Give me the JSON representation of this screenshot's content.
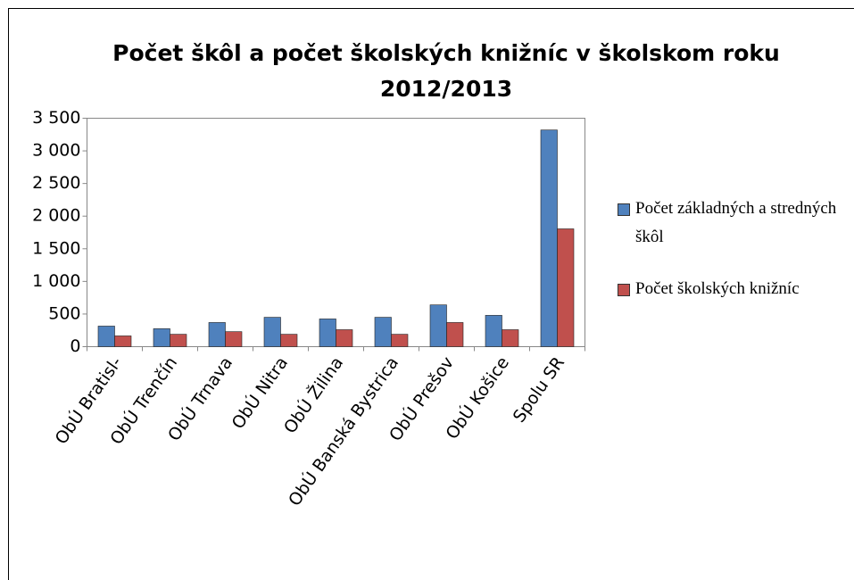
{
  "chart_data": {
    "type": "bar",
    "title": "Počet škôl a počet školských knižníc v školskom roku 2012/2013",
    "categories": [
      "ObÚ Bratisl-",
      "ObÚ Trenčín",
      "ObÚ Trnava",
      "ObÚ Nitra",
      "ObÚ Žilina",
      "ObÚ Banská Bystrica",
      "ObÚ Prešov",
      "ObÚ Košice",
      "Spolu SR"
    ],
    "series": [
      {
        "name": "Počet základných a stredných škôl",
        "color": "#4f81bd",
        "values": [
          315,
          275,
          370,
          450,
          425,
          450,
          640,
          480,
          3320
        ]
      },
      {
        "name": "Počet školských knižníc",
        "color": "#c0504d",
        "values": [
          165,
          190,
          230,
          190,
          260,
          190,
          370,
          260,
          1805
        ]
      }
    ],
    "ylim": [
      0,
      3500
    ],
    "yticks": [
      0,
      500,
      {
        "value": 1000,
        "label": "1 000"
      },
      {
        "value": 1500,
        "label": "1 500"
      },
      {
        "value": 2000,
        "label": "2 000"
      },
      {
        "value": 2500,
        "label": "2 500"
      },
      {
        "value": 3000,
        "label": "3 000"
      },
      {
        "value": 3500,
        "label": "3 500"
      }
    ],
    "grid": false,
    "legend": "right"
  }
}
